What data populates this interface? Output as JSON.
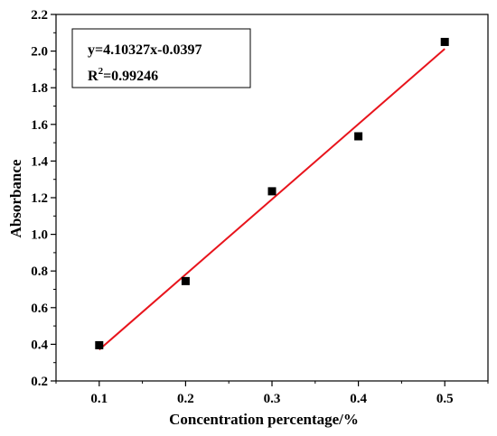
{
  "chart_data": {
    "type": "scatter",
    "xlabel": "Concentration percentage/%",
    "ylabel": "Absorbance",
    "xlim": [
      0.05,
      0.55
    ],
    "ylim": [
      0.2,
      2.2
    ],
    "x_ticks": [
      "0.1",
      "0.2",
      "0.3",
      "0.4",
      "0.5"
    ],
    "x_tick_values": [
      0.1,
      0.2,
      0.3,
      0.4,
      0.5
    ],
    "y_ticks": [
      "0.2",
      "0.4",
      "0.6",
      "0.8",
      "1.0",
      "1.2",
      "1.4",
      "1.6",
      "1.8",
      "2.0",
      "2.2"
    ],
    "y_tick_values": [
      0.2,
      0.4,
      0.6,
      0.8,
      1.0,
      1.2,
      1.4,
      1.6,
      1.8,
      2.0,
      2.2
    ],
    "points": [
      {
        "x": 0.1,
        "y": 0.395
      },
      {
        "x": 0.2,
        "y": 0.745
      },
      {
        "x": 0.3,
        "y": 1.235
      },
      {
        "x": 0.4,
        "y": 1.535
      },
      {
        "x": 0.5,
        "y": 2.05
      }
    ],
    "fit": {
      "slope": 4.10327,
      "intercept": -0.0397,
      "x_range": [
        0.1,
        0.5
      ]
    },
    "annotation": {
      "equation": "y=4.10327x-0.0397",
      "r2_prefix": "R",
      "r2_sup": "2",
      "r2_suffix": "=0.99246"
    },
    "grid": false,
    "colors": {
      "points": "#000000",
      "fit_line": "#e8141c",
      "axes": "#000000"
    }
  }
}
